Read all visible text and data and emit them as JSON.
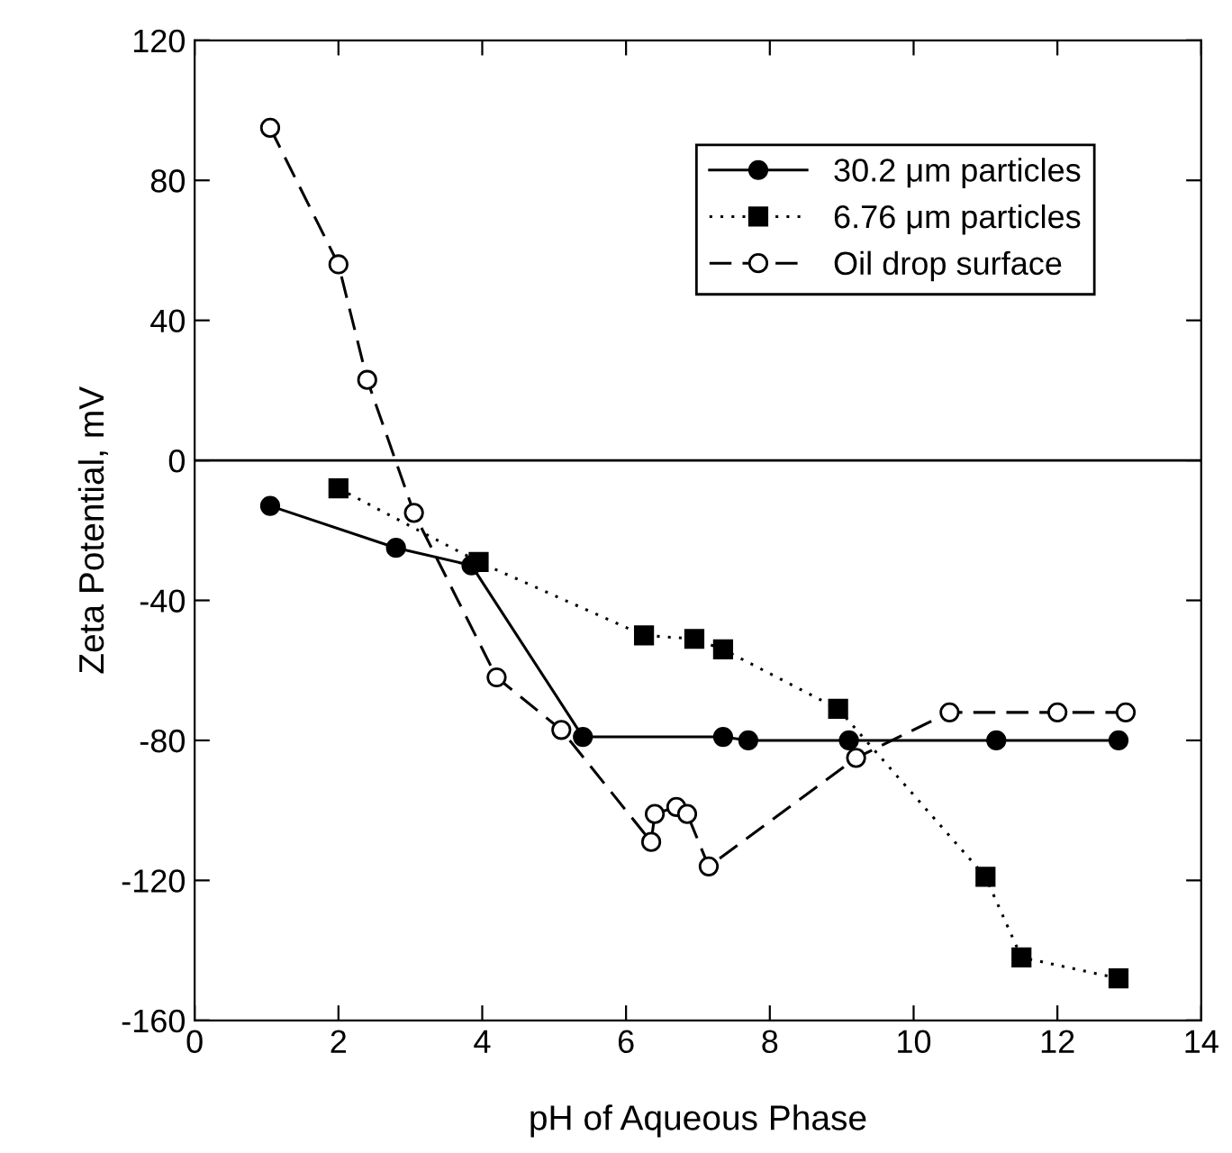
{
  "chart_data": {
    "type": "line",
    "xlabel": "pH of Aqueous Phase",
    "ylabel": "Zeta Potential, mV",
    "xlim": [
      0,
      14
    ],
    "xticks": [
      0,
      2,
      4,
      6,
      8,
      10,
      12,
      14
    ],
    "ylim": [
      -160,
      120
    ],
    "yticks": [
      -160,
      -120,
      -80,
      -40,
      0,
      40,
      80,
      120
    ],
    "grid": false,
    "legend": "top right",
    "ref_lines": [
      {
        "axis": "y",
        "value": 0,
        "color": "#000000",
        "line_style": "solid"
      }
    ],
    "series": [
      {
        "name": "30.2 μm particles",
        "color": "#000000",
        "marker": "circle",
        "line_style": "solid",
        "x": [
          1.05,
          2.8,
          3.85,
          5.4,
          7.35,
          7.7,
          9.1,
          11.15,
          12.85
        ],
        "values": [
          -13,
          -25,
          -30,
          -79,
          -79,
          -80,
          -80,
          -80,
          -80
        ]
      },
      {
        "name": "6.76 μm particles",
        "color": "#000000",
        "marker": "square",
        "line_style": "dotted",
        "x": [
          2.0,
          3.95,
          6.25,
          6.95,
          7.35,
          8.95,
          11.0,
          11.5,
          12.85
        ],
        "values": [
          -8,
          -29,
          -50,
          -51,
          -54,
          -71,
          -119,
          -142,
          -148
        ]
      },
      {
        "name": "Oil drop surface",
        "color": "#000000",
        "marker": "circle",
        "line_style": "dashed",
        "x": [
          1.05,
          2.0,
          2.4,
          3.05,
          4.2,
          5.1,
          6.35,
          6.4,
          6.7,
          6.85,
          7.15,
          9.2,
          10.5,
          12.0,
          12.95
        ],
        "values": [
          95,
          56,
          23,
          -15,
          -62,
          -77,
          -109,
          -101,
          -99,
          -101,
          -116,
          -85,
          -72,
          -72,
          -72
        ]
      }
    ]
  }
}
